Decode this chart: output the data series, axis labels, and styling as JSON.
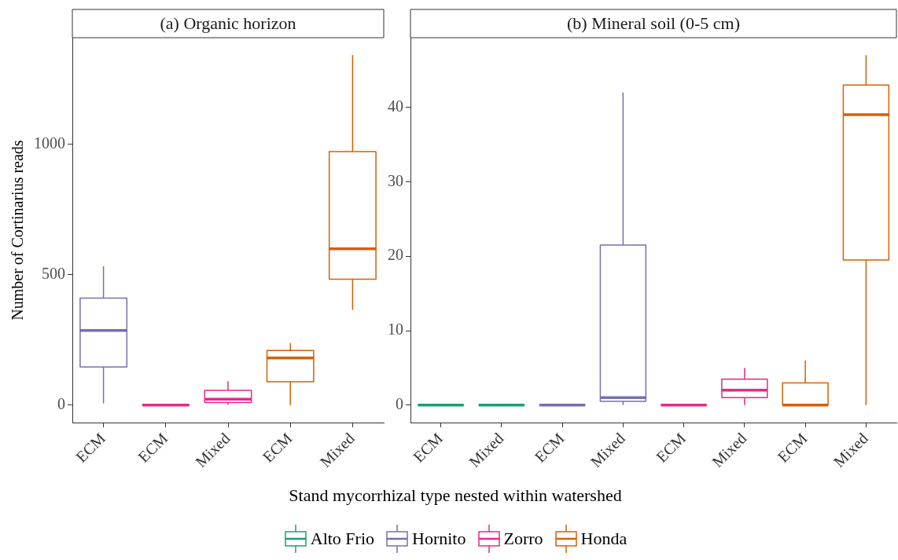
{
  "chart_data": [
    {
      "type": "box",
      "title": "(a) Organic horizon",
      "ylabel": "Number of Cortinarius reads",
      "categories": [
        "ECM",
        "ECM",
        "Mixed",
        "ECM",
        "Mixed"
      ],
      "ylim": [
        -67,
        1407
      ],
      "yticks": [
        0,
        500,
        1000
      ],
      "grid": false,
      "series": [
        {
          "color": "#7570b3",
          "boxes": [
            {
              "low": 7,
              "q1": 146,
              "median": 286,
              "q3": 410,
              "high": 532
            },
            null,
            null,
            null,
            null
          ]
        },
        {
          "color": "#e7298a",
          "boxes": [
            null,
            {
              "low": 0,
              "q1": 0,
              "median": 0,
              "q3": 0,
              "high": 0
            },
            {
              "low": 2,
              "q1": 10,
              "median": 23,
              "q3": 57,
              "high": 92
            },
            null,
            null
          ]
        },
        {
          "color": "#d95f02",
          "boxes": [
            null,
            null,
            null,
            {
              "low": 0,
              "q1": 90,
              "median": 181,
              "q3": 209,
              "high": 238
            },
            {
              "low": 365,
              "q1": 482,
              "median": 599,
              "q3": 971,
              "high": 1341
            }
          ]
        }
      ]
    },
    {
      "type": "box",
      "title": "(b) Mineral soil (0-5 cm)",
      "xlabel": "Stand mycorrhizal  type nested within watershed",
      "categories": [
        "ECM",
        "Mixed",
        "ECM",
        "Mixed",
        "ECM",
        "Mixed",
        "ECM",
        "Mixed"
      ],
      "ylim": [
        -2.35,
        49.35
      ],
      "yticks": [
        0,
        10,
        20,
        30,
        40
      ],
      "grid": false,
      "legend": "bottom",
      "series": [
        {
          "name": "Alto Frio",
          "color": "#1b9e77",
          "boxes": [
            {
              "low": 0,
              "q1": 0,
              "median": 0,
              "q3": 0,
              "high": 0
            },
            {
              "low": 0,
              "q1": 0,
              "median": 0,
              "q3": 0,
              "high": 0
            },
            null,
            null,
            null,
            null,
            null,
            null
          ]
        },
        {
          "name": "Hornito",
          "color": "#7570b3",
          "boxes": [
            null,
            null,
            {
              "low": 0,
              "q1": 0,
              "median": 0,
              "q3": 0,
              "high": 0
            },
            {
              "low": 0,
              "q1": 0.5,
              "median": 1,
              "q3": 21.5,
              "high": 42
            },
            null,
            null,
            null,
            null
          ]
        },
        {
          "name": "Zorro",
          "color": "#e7298a",
          "boxes": [
            null,
            null,
            null,
            null,
            {
              "low": 0,
              "q1": 0,
              "median": 0,
              "q3": 0,
              "high": 0
            },
            {
              "low": 0,
              "q1": 1,
              "median": 2,
              "q3": 3.5,
              "high": 5
            },
            null,
            null
          ]
        },
        {
          "name": "Honda",
          "color": "#d95f02",
          "boxes": [
            null,
            null,
            null,
            null,
            null,
            null,
            {
              "low": 0,
              "q1": 0,
              "median": 0,
              "q3": 3,
              "high": 6
            },
            {
              "low": 0,
              "q1": 19.5,
              "median": 39,
              "q3": 43,
              "high": 47
            }
          ]
        }
      ]
    }
  ]
}
